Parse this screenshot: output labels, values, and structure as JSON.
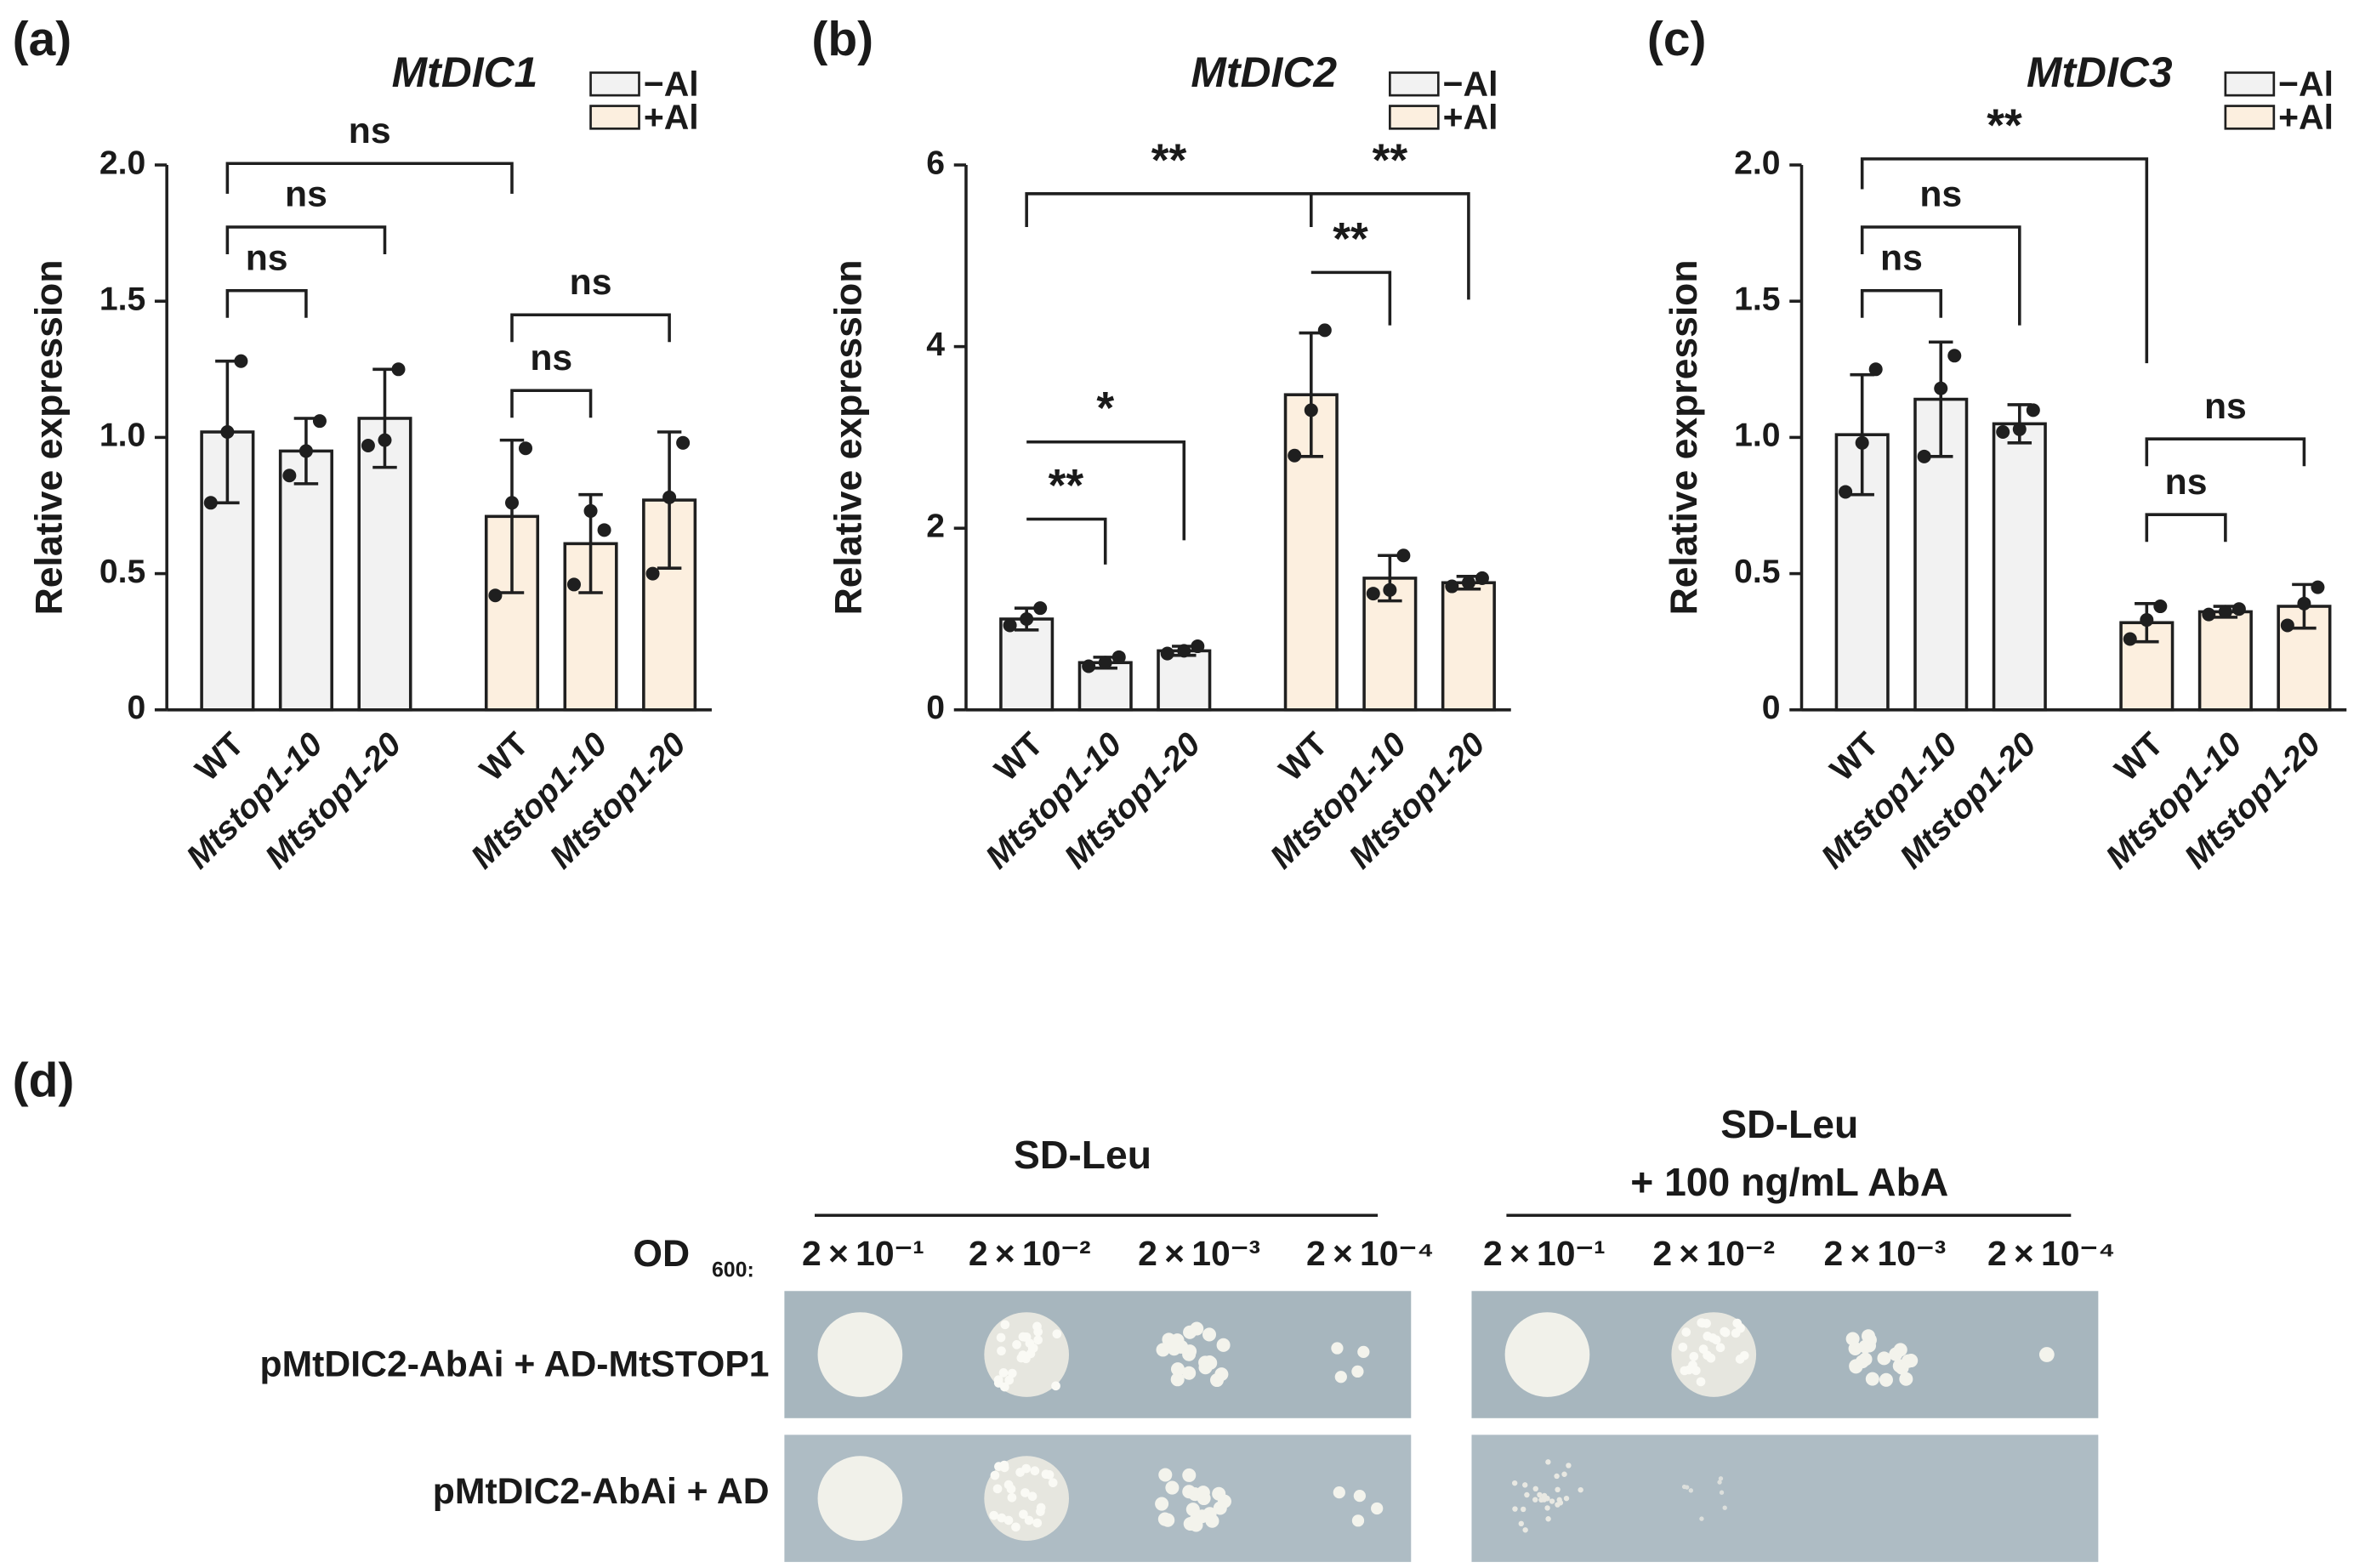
{
  "chart_data": [
    {
      "type": "bar",
      "panel_label": "(a)",
      "title": "MtDIC1",
      "ylabel": "Relative expression",
      "categories": [
        "WT",
        "Mtstop1-10",
        "Mtstop1-20"
      ],
      "series": [
        {
          "name": "−Al",
          "color": "#f2f2f2",
          "values": [
            1.02,
            0.95,
            1.07
          ],
          "errors": [
            0.26,
            0.12,
            0.18
          ],
          "points": [
            [
              0.76,
              1.02,
              1.28
            ],
            [
              0.86,
              0.95,
              1.06
            ],
            [
              0.97,
              0.99,
              1.25
            ]
          ]
        },
        {
          "name": "+Al",
          "color": "#fcefdf",
          "values": [
            0.71,
            0.61,
            0.77
          ],
          "errors": [
            0.28,
            0.18,
            0.25
          ],
          "points": [
            [
              0.42,
              0.76,
              0.96
            ],
            [
              0.46,
              0.73,
              0.66
            ],
            [
              0.5,
              0.78,
              0.98
            ]
          ]
        }
      ],
      "ylim": [
        0,
        2
      ],
      "yticks": [
        0,
        0.5,
        {
          "value": 1,
          "label": "1.0"
        },
        1.5,
        {
          "value": 2,
          "label": "2.0"
        }
      ],
      "annotations": [
        "ns",
        "ns",
        "ns",
        "ns",
        "ns"
      ]
    },
    {
      "type": "bar",
      "panel_label": "(b)",
      "title": "MtDIC2",
      "ylabel": "Relative expression",
      "categories": [
        "WT",
        "Mtstop1-10",
        "Mtstop1-20"
      ],
      "series": [
        {
          "name": "−Al",
          "color": "#f2f2f2",
          "values": [
            1.0,
            0.52,
            0.65
          ],
          "errors": [
            0.12,
            0.06,
            0.05
          ],
          "points": [
            [
              0.93,
              1.0,
              1.12
            ],
            [
              0.48,
              0.52,
              0.58
            ],
            [
              0.62,
              0.65,
              0.7
            ]
          ]
        },
        {
          "name": "+Al",
          "color": "#fcefdf",
          "values": [
            3.47,
            1.45,
            1.4
          ],
          "errors": [
            0.68,
            0.25,
            0.07
          ],
          "points": [
            [
              2.8,
              3.3,
              4.18
            ],
            [
              1.28,
              1.32,
              1.7
            ],
            [
              1.36,
              1.4,
              1.45
            ]
          ]
        }
      ],
      "ylim": [
        0,
        6
      ],
      "yticks": [
        0,
        2,
        4,
        6
      ],
      "annotations": [
        "**",
        "**",
        "**",
        "*",
        "**"
      ]
    },
    {
      "type": "bar",
      "panel_label": "(c)",
      "title": "MtDIC3",
      "ylabel": "Relative expression",
      "categories": [
        "WT",
        "Mtstop1-10",
        "Mtstop1-20"
      ],
      "series": [
        {
          "name": "−Al",
          "color": "#f2f2f2",
          "values": [
            1.01,
            1.14,
            1.05
          ],
          "errors": [
            0.22,
            0.21,
            0.07
          ],
          "points": [
            [
              0.8,
              0.98,
              1.25
            ],
            [
              0.93,
              1.18,
              1.3
            ],
            [
              1.02,
              1.03,
              1.1
            ]
          ]
        },
        {
          "name": "+Al",
          "color": "#fcefdf",
          "values": [
            0.32,
            0.36,
            0.38
          ],
          "errors": [
            0.07,
            0.02,
            0.08
          ],
          "points": [
            [
              0.26,
              0.33,
              0.38
            ],
            [
              0.35,
              0.36,
              0.37
            ],
            [
              0.31,
              0.39,
              0.45
            ]
          ]
        }
      ],
      "ylim": [
        0,
        2
      ],
      "yticks": [
        0,
        0.5,
        {
          "value": 1,
          "label": "1.0"
        },
        1.5,
        {
          "value": 2,
          "label": "2.0"
        }
      ],
      "annotations": [
        "**",
        "ns",
        "ns",
        "ns",
        "ns"
      ]
    }
  ],
  "panel_d": {
    "panel_label": "(d)",
    "left_title": "SD-Leu",
    "right_title": "SD-Leu",
    "right_subtitle": "+ 100 ng/mL AbA",
    "od_label": "OD",
    "od_sub": "600:",
    "dilutions": [
      "2 × 10⁻¹",
      "2 × 10⁻²",
      "2 × 10⁻³",
      "2 × 10⁻⁴"
    ],
    "rows": [
      "pMtDIC2-AbAi + AD-MtSTOP1",
      "pMtDIC2-AbAi + AD"
    ]
  }
}
